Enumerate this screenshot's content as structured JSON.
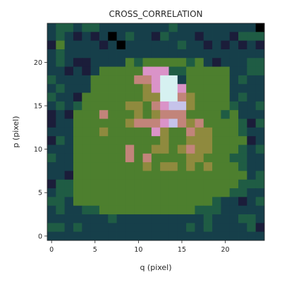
{
  "chart_data": {
    "type": "heatmap",
    "title": "CROSS_CORRELATION",
    "xlabel": "q (pixel)",
    "ylabel": "p (pixel)",
    "xlim": [
      -0.5,
      24.5
    ],
    "ylim": [
      -0.5,
      24.5
    ],
    "x_ticks": [
      0,
      5,
      10,
      15,
      20
    ],
    "y_ticks": [
      0,
      5,
      10,
      15,
      20
    ],
    "x_tick_labels": [
      "0",
      "5",
      "10",
      "15",
      "20"
    ],
    "y_tick_labels": [
      "0",
      "5",
      "10",
      "15",
      "20"
    ],
    "colormap": "cubehelix",
    "grid": false,
    "value_range": [
      0,
      1
    ],
    "grid_size": [
      25,
      25
    ],
    "cells": [
      "2332332222222232222222220",
      "2321212023221322212221333",
      "1422221202222223221212121",
      "2322222222222222222222222",
      "2321122224344444342122233",
      "2212124444477733444442233",
      "3222244444667992444442322",
      "2322244444457997444442222",
      "3221444444455996544442322",
      "2323444445546788544443223",
      "1214446444545666444434222",
      "1224444445666786564444313",
      "2224445444447544655444322",
      "1324444444444544555444412",
      "2224444446445545655444323",
      "3224444446464444554443322",
      "2224444444454554545444322",
      "2214444444444444444444423",
      "1334444444444444444444333",
      "2334444444444444444443322",
      "3324444444444444444322123",
      "2322334444444444433322222",
      "2222222322222222223222332",
      "3323222222222222323222231",
      "2222222222222222222222222"
    ],
    "level_colors": [
      "#000000",
      "#1b1d3a",
      "#163f4a",
      "#1f5c44",
      "#4d7f2e",
      "#8f8a3e",
      "#c2847a",
      "#da93c8",
      "#c6c3ea",
      "#d6f1f1",
      "#ffffff"
    ]
  }
}
